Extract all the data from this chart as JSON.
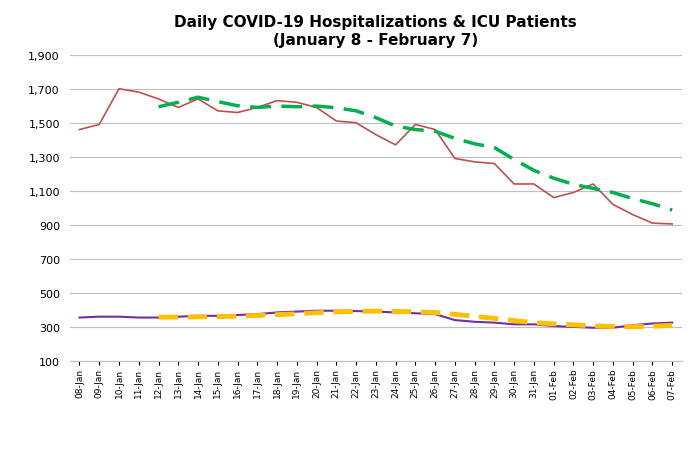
{
  "title_line1": "Daily COVID-19 Hospitalizations & ICU Patients",
  "title_line2": "(January 8 - February 7)",
  "dates": [
    "08-Jan",
    "09-Jan",
    "10-Jan",
    "11-Jan",
    "12-Jan",
    "13-Jan",
    "14-Jan",
    "15-Jan",
    "16-Jan",
    "17-Jan",
    "18-Jan",
    "19-Jan",
    "20-Jan",
    "21-Jan",
    "22-Jan",
    "23-Jan",
    "24-Jan",
    "25-Jan",
    "26-Jan",
    "27-Jan",
    "28-Jan",
    "29-Jan",
    "30-Jan",
    "31-Jan",
    "01-Feb",
    "02-Feb",
    "03-Feb",
    "04-Feb",
    "05-Feb",
    "06-Feb",
    "07-Feb"
  ],
  "hosp": [
    1460,
    1490,
    1700,
    1680,
    1640,
    1590,
    1640,
    1570,
    1560,
    1590,
    1630,
    1620,
    1590,
    1510,
    1500,
    1430,
    1370,
    1490,
    1460,
    1290,
    1270,
    1260,
    1140,
    1140,
    1060,
    1090,
    1140,
    1020,
    960,
    910,
    905
  ],
  "icu": [
    355,
    360,
    360,
    355,
    355,
    360,
    365,
    365,
    370,
    375,
    385,
    390,
    395,
    395,
    393,
    390,
    385,
    380,
    375,
    340,
    330,
    325,
    315,
    315,
    305,
    300,
    295,
    295,
    310,
    320,
    325
  ],
  "hosp_color": "#c0504d",
  "icu_color": "#7030a0",
  "hosp_ma_color": "#00b050",
  "icu_ma_color": "#ffc000",
  "background_color": "#ffffff",
  "grid_color": "#bfbfbf",
  "ylim_min": 100,
  "ylim_max": 1900,
  "yticks": [
    100,
    300,
    500,
    700,
    900,
    1100,
    1300,
    1500,
    1700,
    1900
  ]
}
